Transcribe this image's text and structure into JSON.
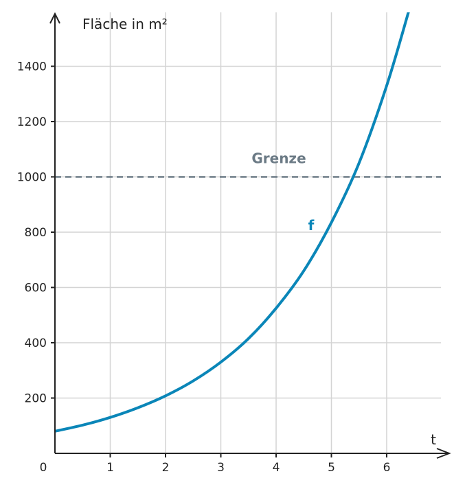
{
  "chart_data": {
    "type": "line",
    "ylabel": "Fläche in m²",
    "xlabel": "t",
    "origin_label": "0",
    "xlim": [
      0,
      6.9
    ],
    "ylim": [
      0,
      1600
    ],
    "x_ticks": [
      1,
      2,
      3,
      4,
      5,
      6
    ],
    "x_tick_labels": [
      "1",
      "2",
      "3",
      "4",
      "5",
      "6"
    ],
    "y_ticks": [
      200,
      400,
      600,
      800,
      1000,
      1200,
      1400
    ],
    "y_tick_labels": [
      "200",
      "400",
      "600",
      "800",
      "1000",
      "1200",
      "1400"
    ],
    "grid": true,
    "series": [
      {
        "name": "f",
        "color": "#0a86b8",
        "x": [
          0,
          0.5,
          1,
          1.5,
          2,
          2.5,
          3,
          3.5,
          4,
          4.5,
          5,
          5.5,
          6,
          6.4
        ],
        "values": [
          80,
          102,
          130,
          165,
          208,
          262,
          330,
          415,
          525,
          660,
          835,
          1050,
          1330,
          1600
        ]
      }
    ],
    "reference_line": {
      "label": "Grenze",
      "y": 1000,
      "color": "#6b7a85",
      "style": "dashed"
    }
  }
}
